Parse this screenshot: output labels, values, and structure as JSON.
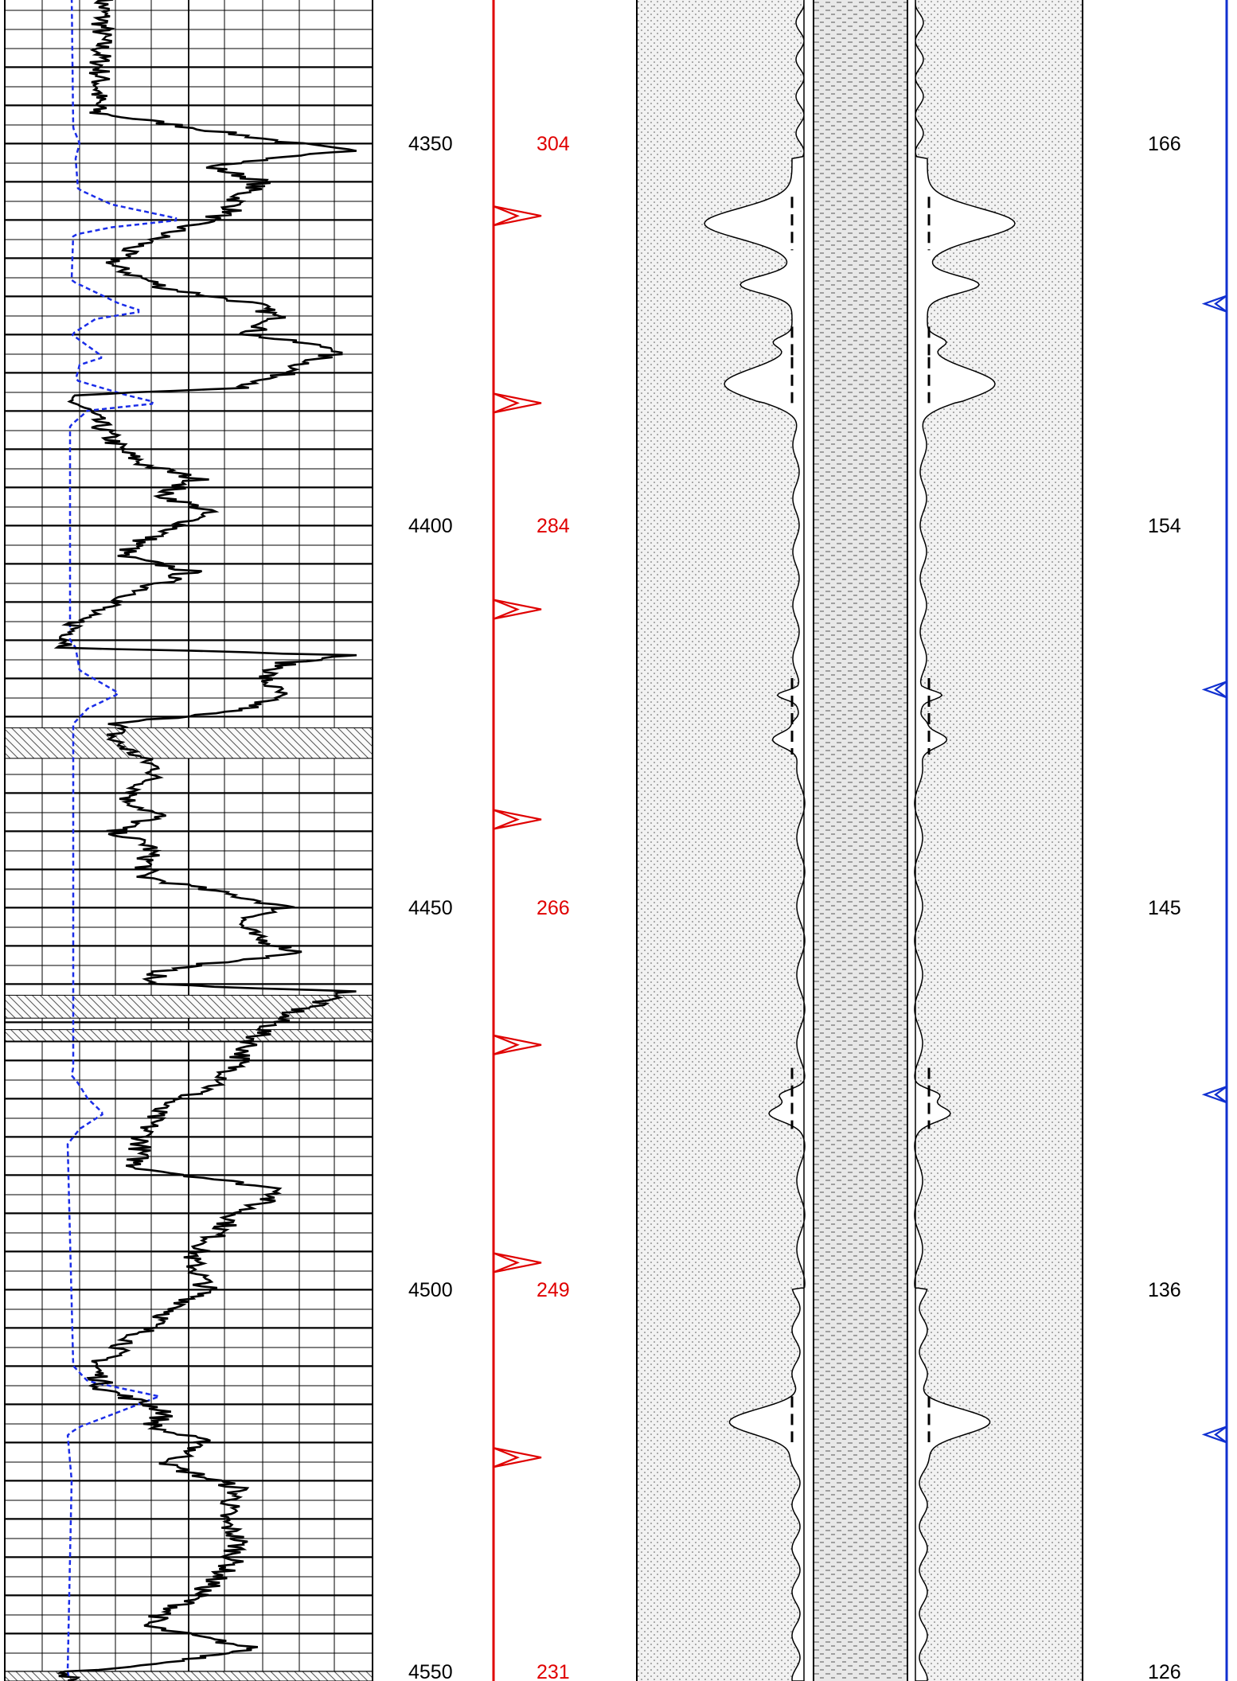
{
  "depth_track": {
    "labels": [
      "4350",
      "4400",
      "4450",
      "4500",
      "4550"
    ],
    "depths": [
      4350,
      4400,
      4450,
      4500,
      4550
    ]
  },
  "red_scale": {
    "color": "#e00000",
    "labels": [
      "304",
      "284",
      "266",
      "249",
      "231"
    ]
  },
  "blue_scale": {
    "color": "#1030d0",
    "labels": [
      "166",
      "154",
      "145",
      "136",
      "126"
    ]
  },
  "colors": {
    "curve": "#000000",
    "dashed_curve": "#1a2de8",
    "grid": "#000000"
  },
  "icons": {
    "red_markers": "red-arrow-marker-icon",
    "blue_markers": "blue-arrow-marker-icon"
  },
  "chart_data": {
    "type": "line",
    "y_axis": "depth",
    "depth_range": [
      4332,
      4552
    ],
    "red_marker_depths": [
      4359.5,
      4384,
      4411,
      4438.5,
      4468,
      4496.5,
      4522
    ],
    "blue_marker_depths": [
      4371,
      4421.5,
      4474.5,
      4519
    ],
    "shale_beds": [
      [
        4426.5,
        4430.5
      ],
      [
        4461.5,
        4464.5
      ],
      [
        4466,
        4467.5
      ],
      [
        4550,
        4552
      ]
    ]
  }
}
